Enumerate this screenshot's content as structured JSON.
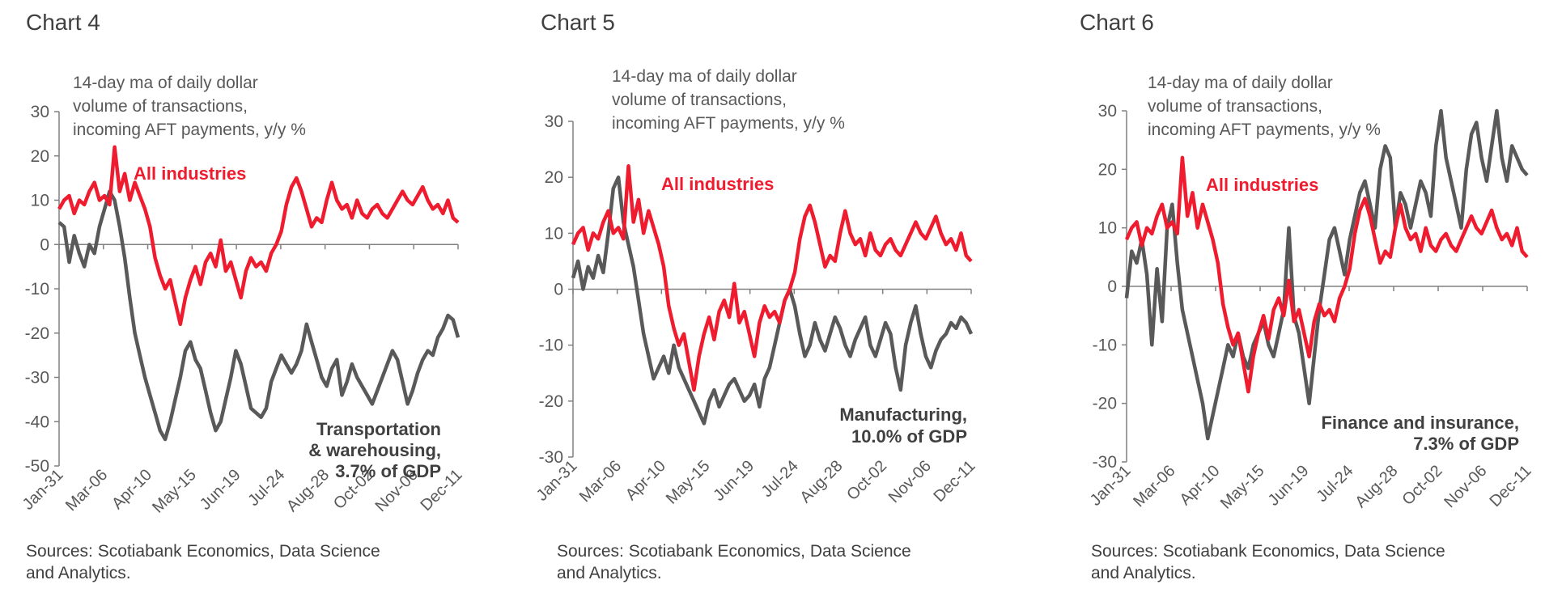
{
  "x_tick_labels": [
    "Jan-31",
    "Mar-06",
    "Apr-10",
    "May-15",
    "Jun-19",
    "Jul-24",
    "Aug-28",
    "Oct-02",
    "Nov-06",
    "Dec-11"
  ],
  "colors": {
    "all_industries": "#ee1c2e",
    "industry": "#595959",
    "axis": "#808080"
  },
  "chart_data": [
    {
      "type": "line",
      "title": "Chart 4",
      "subtitle": [
        "14-day  ma of daily dollar",
        "volume of transactions,",
        "incoming AFT payments, y/y %"
      ],
      "source": [
        "Sources: Scotiabank Economics, Data Science",
        "and Analytics."
      ],
      "ylim": [
        -50,
        30
      ],
      "yticks": [
        30,
        20,
        10,
        0,
        -10,
        -20,
        -30,
        -40,
        -50
      ],
      "series": [
        {
          "name": "All industries",
          "label_lines": [
            "All industries"
          ],
          "color": "#ee1c2e",
          "values": [
            8,
            10,
            11,
            7,
            10,
            9,
            12,
            14,
            10,
            11,
            9,
            22,
            12,
            16,
            10,
            14,
            11,
            8,
            4,
            -3,
            -7,
            -10,
            -8,
            -13,
            -18,
            -12,
            -8,
            -5,
            -9,
            -4,
            -2,
            -5,
            1,
            -6,
            -4,
            -8,
            -12,
            -6,
            -3,
            -5,
            -4,
            -6,
            -2,
            0,
            3,
            9,
            13,
            15,
            12,
            8,
            4,
            6,
            5,
            10,
            14,
            10,
            8,
            9,
            6,
            10,
            7,
            6,
            8,
            9,
            7,
            6,
            8,
            10,
            12,
            10,
            9,
            11,
            13,
            10,
            8,
            9,
            7,
            10,
            6,
            5
          ]
        },
        {
          "name": "Transportation & warehousing, 3.7% of GDP",
          "label_lines": [
            "Transportation",
            "& warehousing,",
            "3.7% of GDP"
          ],
          "color": "#595959",
          "values": [
            5,
            4,
            -4,
            2,
            -2,
            -5,
            0,
            -2,
            4,
            8,
            12,
            10,
            4,
            -3,
            -12,
            -20,
            -25,
            -30,
            -34,
            -38,
            -42,
            -44,
            -40,
            -35,
            -30,
            -24,
            -22,
            -26,
            -28,
            -33,
            -38,
            -42,
            -40,
            -35,
            -30,
            -24,
            -27,
            -32,
            -37,
            -38,
            -39,
            -37,
            -31,
            -28,
            -25,
            -27,
            -29,
            -27,
            -24,
            -18,
            -22,
            -26,
            -30,
            -32,
            -28,
            -26,
            -34,
            -31,
            -27,
            -30,
            -32,
            -34,
            -36,
            -33,
            -30,
            -27,
            -24,
            -26,
            -31,
            -36,
            -33,
            -29,
            -26,
            -24,
            -25,
            -21,
            -19,
            -16,
            -17,
            -21
          ]
        }
      ]
    },
    {
      "type": "line",
      "title": "Chart 5",
      "subtitle": [
        "14-day  ma of daily dollar",
        "volume of transactions,",
        "incoming AFT payments, y/y %"
      ],
      "source": [
        "Sources: Scotiabank Economics, Data Science",
        "and Analytics."
      ],
      "ylim": [
        -30,
        30
      ],
      "yticks": [
        30,
        20,
        10,
        0,
        -10,
        -20,
        -30
      ],
      "series": [
        {
          "name": "All industries",
          "label_lines": [
            "All industries"
          ],
          "color": "#ee1c2e",
          "values": [
            8,
            10,
            11,
            7,
            10,
            9,
            12,
            14,
            10,
            11,
            9,
            22,
            12,
            16,
            10,
            14,
            11,
            8,
            4,
            -3,
            -7,
            -10,
            -8,
            -13,
            -18,
            -12,
            -8,
            -5,
            -9,
            -4,
            -2,
            -5,
            1,
            -6,
            -4,
            -8,
            -12,
            -6,
            -3,
            -5,
            -4,
            -6,
            -2,
            0,
            3,
            9,
            13,
            15,
            12,
            8,
            4,
            6,
            5,
            10,
            14,
            10,
            8,
            9,
            6,
            10,
            7,
            6,
            8,
            9,
            7,
            6,
            8,
            10,
            12,
            10,
            9,
            11,
            13,
            10,
            8,
            9,
            7,
            10,
            6,
            5
          ]
        },
        {
          "name": "Manufacturing, 10.0% of GDP",
          "label_lines": [
            "Manufacturing,",
            "10.0% of GDP"
          ],
          "color": "#595959",
          "values": [
            2,
            5,
            0,
            4,
            2,
            6,
            3,
            10,
            18,
            20,
            12,
            8,
            4,
            -2,
            -8,
            -12,
            -16,
            -14,
            -12,
            -15,
            -10,
            -14,
            -16,
            -18,
            -20,
            -22,
            -24,
            -20,
            -18,
            -21,
            -19,
            -17,
            -16,
            -18,
            -20,
            -19,
            -17,
            -21,
            -16,
            -14,
            -10,
            -6,
            -2,
            0,
            -3,
            -8,
            -12,
            -10,
            -6,
            -9,
            -11,
            -8,
            -5,
            -7,
            -10,
            -12,
            -9,
            -7,
            -5,
            -10,
            -12,
            -9,
            -6,
            -8,
            -14,
            -18,
            -10,
            -6,
            -3,
            -8,
            -12,
            -14,
            -11,
            -9,
            -8,
            -6,
            -7,
            -5,
            -6,
            -8
          ]
        }
      ]
    },
    {
      "type": "line",
      "title": "Chart 6",
      "subtitle": [
        "14-day  ma of daily dollar",
        "volume of transactions,",
        "incoming AFT payments, y/y %"
      ],
      "source": [
        "Sources: Scotiabank Economics, Data Science",
        "and Analytics."
      ],
      "ylim": [
        -30,
        30
      ],
      "yticks": [
        30,
        20,
        10,
        0,
        -10,
        -20,
        -30
      ],
      "series": [
        {
          "name": "All industries",
          "label_lines": [
            "All industries"
          ],
          "color": "#ee1c2e",
          "values": [
            8,
            10,
            11,
            7,
            10,
            9,
            12,
            14,
            10,
            11,
            9,
            22,
            12,
            16,
            10,
            14,
            11,
            8,
            4,
            -3,
            -7,
            -10,
            -8,
            -13,
            -18,
            -12,
            -8,
            -5,
            -9,
            -4,
            -2,
            -5,
            1,
            -6,
            -4,
            -8,
            -12,
            -6,
            -3,
            -5,
            -4,
            -6,
            -2,
            0,
            3,
            9,
            13,
            15,
            12,
            8,
            4,
            6,
            5,
            10,
            14,
            10,
            8,
            9,
            6,
            10,
            7,
            6,
            8,
            9,
            7,
            6,
            8,
            10,
            12,
            10,
            9,
            11,
            13,
            10,
            8,
            9,
            7,
            10,
            6,
            5
          ]
        },
        {
          "name": "Finance and insurance, 7.3% of GDP",
          "label_lines": [
            "Finance and insurance,",
            "7.3% of GDP"
          ],
          "color": "#595959",
          "values": [
            -2,
            6,
            4,
            8,
            2,
            -10,
            3,
            -6,
            10,
            14,
            4,
            -4,
            -8,
            -12,
            -16,
            -20,
            -26,
            -22,
            -18,
            -14,
            -10,
            -12,
            -8,
            -12,
            -14,
            -10,
            -8,
            -6,
            -10,
            -12,
            -8,
            -4,
            10,
            -5,
            -8,
            -14,
            -20,
            -12,
            -4,
            2,
            8,
            10,
            6,
            2,
            8,
            12,
            16,
            18,
            14,
            10,
            20,
            24,
            22,
            10,
            16,
            14,
            10,
            14,
            18,
            16,
            12,
            24,
            30,
            22,
            18,
            14,
            10,
            20,
            26,
            28,
            22,
            18,
            24,
            30,
            22,
            18,
            24,
            22,
            20,
            19
          ]
        }
      ]
    }
  ]
}
